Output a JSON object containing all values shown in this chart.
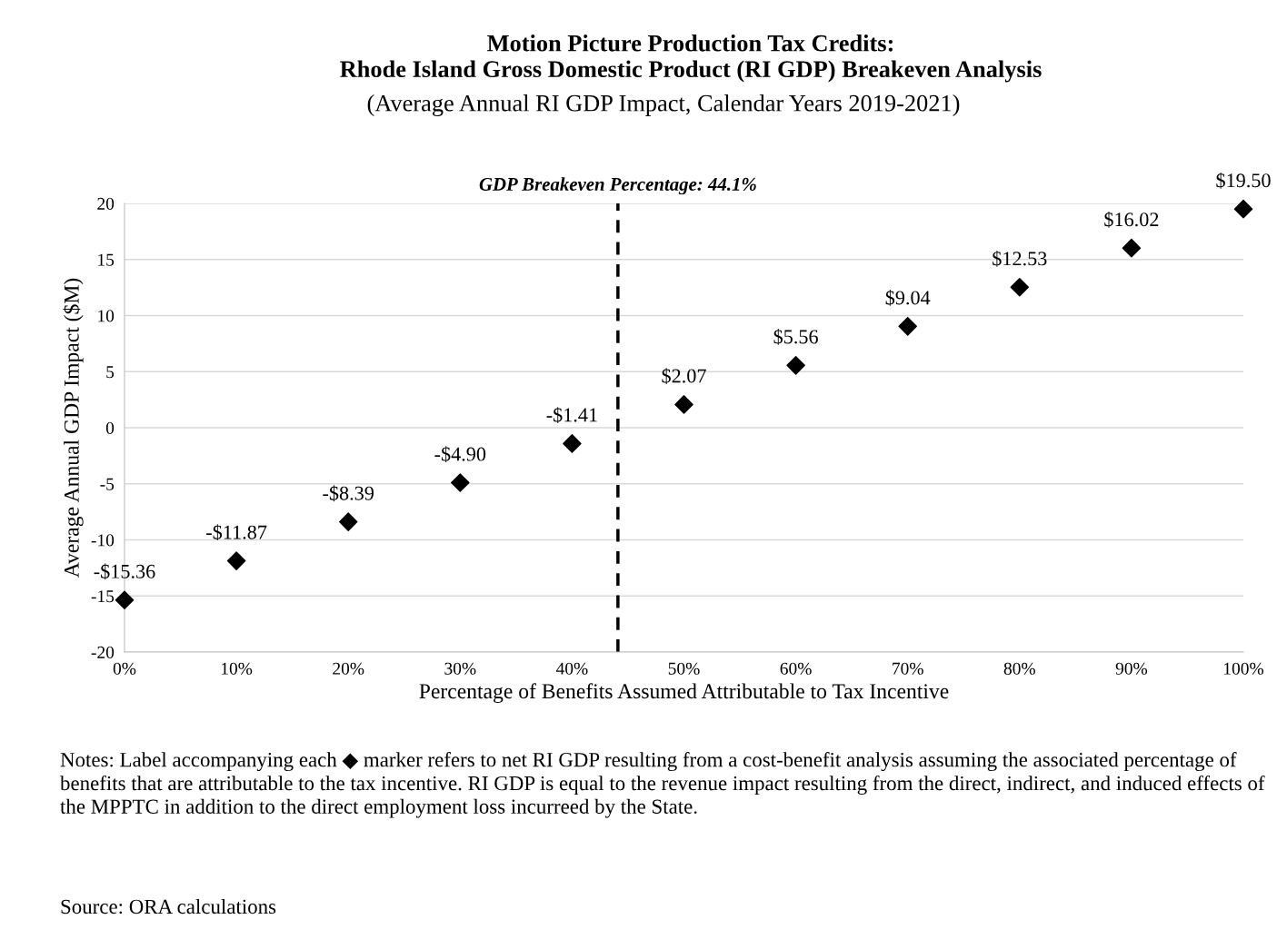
{
  "chart_data": {
    "type": "scatter",
    "title": "Motion Picture Production Tax Credits:\nRhode Island Gross Domestic Product (RI GDP) Breakeven Analysis",
    "subtitle": "(Average Annual RI GDP Impact, Calendar Years 2019-2021)",
    "xlabel": "Percentage of Benefits Assumed Attributable to Tax Incentive",
    "ylabel": "Average Annual GDP Impact ($M)",
    "x": [
      0,
      10,
      20,
      30,
      40,
      50,
      60,
      70,
      80,
      90,
      100
    ],
    "series": [
      {
        "color": "#000000",
        "values": [
          -15.36,
          -11.87,
          -8.39,
          -4.9,
          -1.41,
          2.07,
          5.56,
          9.04,
          12.53,
          16.02,
          19.5
        ],
        "value_labels": [
          "-$15.36",
          "-$11.87",
          "-$8.39",
          "-$4.90",
          "-$1.41",
          "$2.07",
          "$5.56",
          "$9.04",
          "$12.53",
          "$16.02",
          "$19.50"
        ]
      }
    ],
    "marker": "diamond",
    "xlim": [
      0,
      100
    ],
    "xticks": [
      {
        "value": 0,
        "label": "0%"
      },
      {
        "value": 10,
        "label": "10%"
      },
      {
        "value": 20,
        "label": "20%"
      },
      {
        "value": 30,
        "label": "30%"
      },
      {
        "value": 40,
        "label": "40%"
      },
      {
        "value": 50,
        "label": "50%"
      },
      {
        "value": 60,
        "label": "60%"
      },
      {
        "value": 70,
        "label": "70%"
      },
      {
        "value": 80,
        "label": "80%"
      },
      {
        "value": 90,
        "label": "90%"
      },
      {
        "value": 100,
        "label": "100%"
      }
    ],
    "ylim": [
      -20,
      20
    ],
    "yticks": [
      -20,
      -15,
      -10,
      -5,
      0,
      5,
      10,
      15,
      20
    ],
    "grid": "y",
    "ref_lines": [
      {
        "axis": "x",
        "value": 44.1,
        "label": "GDP Breakeven Percentage: 44.1%",
        "color": "#000000",
        "line_style": "dashed"
      }
    ],
    "annotations": [
      "Notes: Label accompanying each ◆ marker refers to net RI GDP resulting from a cost-benefit analysis assuming the associated percentage of benefits that are attributable to the tax incentive. RI GDP is equal to the revenue impact resulting from the direct, indirect, and induced effects of the MPPTC in addition to the direct employment loss incurreed by the State.",
      "Source: ORA calculations"
    ]
  }
}
